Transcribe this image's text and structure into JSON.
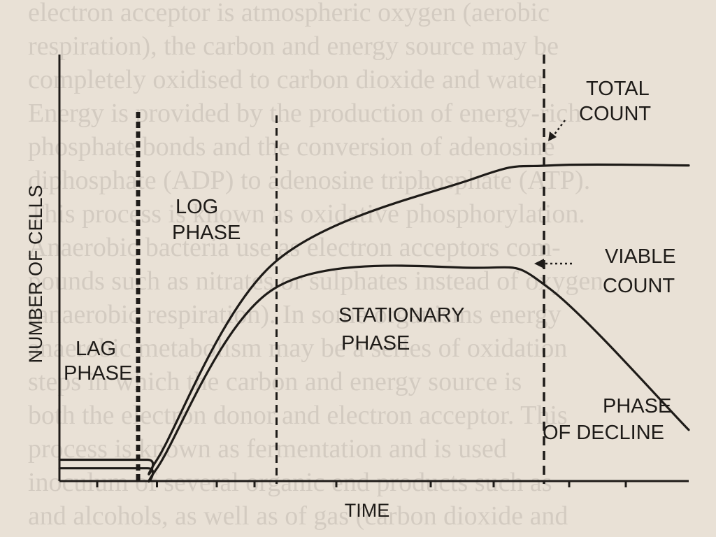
{
  "chart_data": {
    "type": "line",
    "xlabel": "TIME",
    "ylabel": "NUMBER OF CELLS",
    "x": [
      0,
      14,
      15.5,
      34,
      66,
      78,
      100
    ],
    "series": [
      {
        "name": "TOTAL COUNT",
        "values": [
          5,
          5,
          5,
          51,
          71,
          74,
          74
        ]
      },
      {
        "name": "VIABLE COUNT",
        "values": [
          3,
          3,
          3,
          45,
          50,
          45,
          12
        ]
      }
    ],
    "phases": [
      {
        "name": "LAG PHASE",
        "start": 0,
        "end": 12.5
      },
      {
        "name": "LOG PHASE",
        "start": 12.5,
        "end": 34.5
      },
      {
        "name": "STATIONARY PHASE",
        "start": 34.5,
        "end": 77
      },
      {
        "name": "PHASE OF DECLINE",
        "start": 77,
        "end": 100
      }
    ],
    "phase_boundaries": [
      12.5,
      34.5,
      77
    ],
    "annotations": {
      "total_count": [
        "TOTAL",
        "COUNT"
      ],
      "viable_count": [
        "VIABLE",
        "COUNT"
      ],
      "lag_phase": [
        "LAG",
        "PHASE"
      ],
      "log_phase": [
        "LOG",
        "PHASE"
      ],
      "stationary_phase": [
        "STATIONARY",
        "PHASE"
      ],
      "decline_phase": [
        "PHASE",
        "OF DECLINE"
      ]
    },
    "xticks": [
      6,
      15.5,
      25,
      31,
      44,
      59,
      69,
      81,
      90
    ],
    "xlim": [
      0,
      100
    ],
    "ylim": [
      0,
      100
    ],
    "grid": false,
    "legend": "none"
  },
  "background_text": [
    "electron acceptor is atmospheric oxygen (aerobic",
    "respiration), the carbon and energy source may be",
    "completely oxidised to carbon dioxide and water",
    "Energy is provided by the production of energy-rich",
    "phosphate bonds and the conversion of adenosine",
    "diphosphate (ADP) to adenosine triphosphate (ATP).",
    "This process is known as oxidative phosphorylation.",
    "Anaerobic bacteria use as electron acceptors com-",
    "pounds such as nitrates or sulphates instead of oxygen",
    "(anaerobic respiration). In some organisms energy",
    "anaerobic metabolism may be a series of oxidation",
    "steps in which the carbon and energy source is",
    "both the electron donor and electron acceptor. This",
    "process is known as fermentation and is used",
    "inoculum of several organic end products such as",
    "and alcohols, as well as of gas (carbon dioxide and"
  ]
}
